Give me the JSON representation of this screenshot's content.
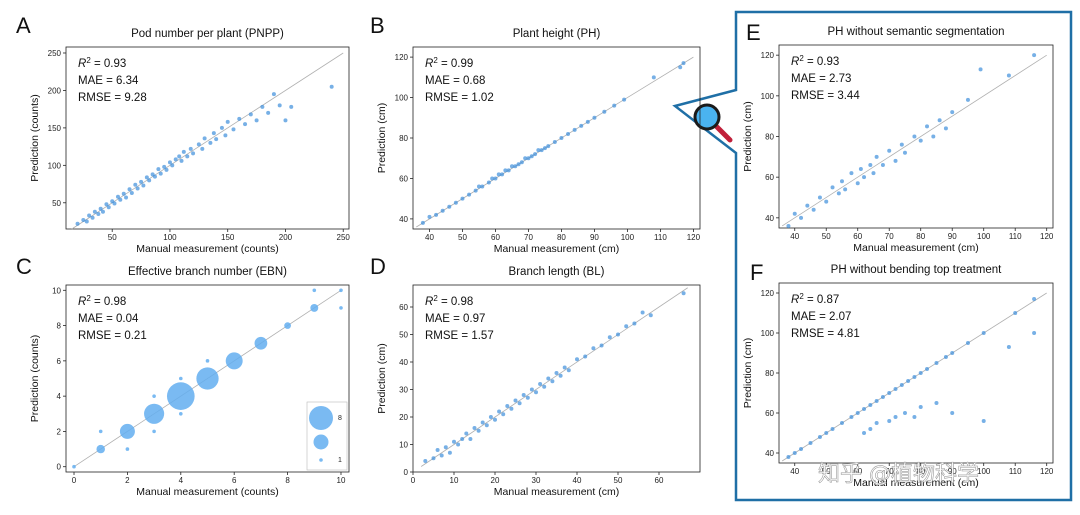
{
  "colors": {
    "point": "#3d8fdc",
    "bubble": "#63aef0",
    "highlight_box": "#1f6fa6",
    "diagonal": "#b0b0b0"
  },
  "zoom_icon": "magnifier-icon",
  "watermark": "知乎 @植物科学",
  "chart_data": [
    {
      "id": "A",
      "type": "scatter",
      "title": "Pod number per plant (PNPP)",
      "xlabel": "Manual measurement (counts)",
      "ylabel": "Prediction (counts)",
      "xlim": [
        10,
        255
      ],
      "ylim": [
        15,
        258
      ],
      "xticks": [
        50,
        100,
        150,
        200,
        250
      ],
      "yticks": [
        50,
        100,
        150,
        200,
        250
      ],
      "stats": {
        "r2": "0.93",
        "mae": "MAE = 6.34",
        "rmse": "RMSE = 9.28"
      },
      "points": [
        [
          20,
          22
        ],
        [
          25,
          27
        ],
        [
          28,
          25
        ],
        [
          30,
          33
        ],
        [
          33,
          30
        ],
        [
          35,
          38
        ],
        [
          38,
          35
        ],
        [
          40,
          42
        ],
        [
          42,
          38
        ],
        [
          45,
          48
        ],
        [
          47,
          44
        ],
        [
          50,
          52
        ],
        [
          52,
          49
        ],
        [
          55,
          58
        ],
        [
          57,
          54
        ],
        [
          60,
          62
        ],
        [
          62,
          57
        ],
        [
          65,
          68
        ],
        [
          67,
          63
        ],
        [
          70,
          74
        ],
        [
          72,
          69
        ],
        [
          75,
          78
        ],
        [
          77,
          73
        ],
        [
          80,
          84
        ],
        [
          82,
          80
        ],
        [
          85,
          88
        ],
        [
          87,
          85
        ],
        [
          90,
          95
        ],
        [
          92,
          89
        ],
        [
          95,
          98
        ],
        [
          97,
          94
        ],
        [
          100,
          104
        ],
        [
          102,
          100
        ],
        [
          105,
          108
        ],
        [
          108,
          112
        ],
        [
          110,
          106
        ],
        [
          112,
          118
        ],
        [
          115,
          112
        ],
        [
          118,
          122
        ],
        [
          120,
          116
        ],
        [
          125,
          128
        ],
        [
          128,
          122
        ],
        [
          130,
          136
        ],
        [
          135,
          130
        ],
        [
          138,
          143
        ],
        [
          140,
          135
        ],
        [
          145,
          150
        ],
        [
          148,
          140
        ],
        [
          150,
          158
        ],
        [
          155,
          148
        ],
        [
          160,
          162
        ],
        [
          165,
          155
        ],
        [
          170,
          168
        ],
        [
          175,
          160
        ],
        [
          180,
          178
        ],
        [
          185,
          170
        ],
        [
          190,
          195
        ],
        [
          195,
          180
        ],
        [
          200,
          160
        ],
        [
          205,
          178
        ],
        [
          240,
          205
        ]
      ],
      "trend": [
        [
          15,
          15
        ],
        [
          250,
          250
        ]
      ]
    },
    {
      "id": "B",
      "type": "scatter",
      "title": "Plant height (PH)",
      "xlabel": "Manual measurement (cm)",
      "ylabel": "Prediction (cm)",
      "xlim": [
        35,
        122
      ],
      "ylim": [
        35,
        125
      ],
      "xticks": [
        40,
        50,
        60,
        70,
        80,
        90,
        100,
        110,
        120
      ],
      "yticks": [
        40,
        60,
        80,
        100,
        120
      ],
      "stats": {
        "r2": "0.99",
        "mae": "MAE = 0.68",
        "rmse": "RMSE = 1.02"
      },
      "points": [
        [
          38,
          38
        ],
        [
          40,
          41
        ],
        [
          42,
          42
        ],
        [
          44,
          44
        ],
        [
          46,
          46
        ],
        [
          48,
          48
        ],
        [
          50,
          50
        ],
        [
          52,
          52
        ],
        [
          54,
          54
        ],
        [
          55,
          56
        ],
        [
          56,
          56
        ],
        [
          58,
          58
        ],
        [
          59,
          60
        ],
        [
          60,
          60
        ],
        [
          61,
          62
        ],
        [
          62,
          62
        ],
        [
          63,
          64
        ],
        [
          64,
          64
        ],
        [
          65,
          66
        ],
        [
          66,
          66
        ],
        [
          67,
          67
        ],
        [
          68,
          68
        ],
        [
          69,
          70
        ],
        [
          70,
          70
        ],
        [
          71,
          71
        ],
        [
          72,
          72
        ],
        [
          73,
          74
        ],
        [
          74,
          74
        ],
        [
          75,
          75
        ],
        [
          76,
          76
        ],
        [
          78,
          78
        ],
        [
          80,
          80
        ],
        [
          82,
          82
        ],
        [
          84,
          84
        ],
        [
          86,
          86
        ],
        [
          88,
          88
        ],
        [
          90,
          90
        ],
        [
          93,
          93
        ],
        [
          96,
          96
        ],
        [
          99,
          99
        ],
        [
          108,
          110
        ],
        [
          116,
          115
        ],
        [
          117,
          117
        ]
      ],
      "trend": [
        [
          36,
          36
        ],
        [
          120,
          120
        ]
      ]
    },
    {
      "id": "C",
      "type": "scatter",
      "title": "Effective branch number (EBN)",
      "xlabel": "Manual measurement (counts)",
      "ylabel": "Prediction (counts)",
      "xlim": [
        -0.3,
        10.3
      ],
      "ylim": [
        -0.3,
        10.3
      ],
      "xticks": [
        0,
        2,
        4,
        6,
        8,
        10
      ],
      "yticks": [
        0,
        2,
        4,
        6,
        8,
        10
      ],
      "stats": {
        "r2": "0.98",
        "mae": "MAE = 0.04",
        "rmse": "RMSE = 0.21"
      },
      "points": [
        [
          0,
          0,
          1
        ],
        [
          1,
          1,
          8
        ],
        [
          2,
          2,
          25
        ],
        [
          3,
          3,
          45
        ],
        [
          4,
          4,
          85
        ],
        [
          5,
          5,
          55
        ],
        [
          6,
          6,
          32
        ],
        [
          7,
          7,
          18
        ],
        [
          8,
          8,
          5
        ],
        [
          9,
          9,
          7
        ],
        [
          10,
          10,
          1
        ],
        [
          9,
          10,
          1
        ],
        [
          10,
          9,
          1
        ],
        [
          2,
          1,
          1
        ],
        [
          3,
          4,
          1
        ],
        [
          4,
          3,
          1
        ],
        [
          5,
          6,
          1
        ],
        [
          4,
          5,
          1
        ],
        [
          3,
          2,
          1
        ],
        [
          1,
          2,
          1
        ]
      ],
      "legend": {
        "sizes": [
          85,
          25,
          1
        ],
        "labels": [
          "8",
          "",
          "1"
        ]
      },
      "trend": [
        [
          0,
          0
        ],
        [
          10,
          10
        ]
      ]
    },
    {
      "id": "D",
      "type": "scatter",
      "title": "Branch length (BL)",
      "xlabel": "Manual measurement (cm)",
      "ylabel": "Prediction (cm)",
      "xlim": [
        0,
        70
      ],
      "ylim": [
        0,
        68
      ],
      "xticks": [
        0,
        10,
        20,
        30,
        40,
        50,
        60
      ],
      "yticks": [
        0,
        10,
        20,
        30,
        40,
        50,
        60
      ],
      "stats": {
        "r2": "0.98",
        "mae": "MAE = 0.97",
        "rmse": "RMSE = 1.57"
      },
      "points": [
        [
          3,
          4
        ],
        [
          5,
          5
        ],
        [
          6,
          8
        ],
        [
          7,
          6
        ],
        [
          8,
          9
        ],
        [
          9,
          7
        ],
        [
          10,
          11
        ],
        [
          11,
          10
        ],
        [
          12,
          12
        ],
        [
          13,
          14
        ],
        [
          14,
          12
        ],
        [
          15,
          16
        ],
        [
          16,
          15
        ],
        [
          17,
          18
        ],
        [
          18,
          17
        ],
        [
          19,
          20
        ],
        [
          20,
          19
        ],
        [
          21,
          22
        ],
        [
          22,
          21
        ],
        [
          23,
          24
        ],
        [
          24,
          23
        ],
        [
          25,
          26
        ],
        [
          26,
          25
        ],
        [
          27,
          28
        ],
        [
          28,
          27
        ],
        [
          29,
          30
        ],
        [
          30,
          29
        ],
        [
          31,
          32
        ],
        [
          32,
          31
        ],
        [
          33,
          34
        ],
        [
          34,
          33
        ],
        [
          35,
          36
        ],
        [
          36,
          35
        ],
        [
          37,
          38
        ],
        [
          38,
          37
        ],
        [
          40,
          41
        ],
        [
          42,
          42
        ],
        [
          44,
          45
        ],
        [
          46,
          46
        ],
        [
          48,
          49
        ],
        [
          50,
          50
        ],
        [
          52,
          53
        ],
        [
          54,
          54
        ],
        [
          56,
          58
        ],
        [
          58,
          57
        ],
        [
          66,
          65
        ]
      ],
      "trend": [
        [
          2,
          2
        ],
        [
          67,
          67
        ]
      ]
    },
    {
      "id": "E",
      "type": "scatter",
      "title": "PH without semantic segmentation",
      "xlabel": "Manual measurement (cm)",
      "ylabel": "Prediction (cm)",
      "xlim": [
        35,
        122
      ],
      "ylim": [
        35,
        125
      ],
      "xticks": [
        40,
        50,
        60,
        70,
        80,
        90,
        100,
        110,
        120
      ],
      "yticks": [
        40,
        60,
        80,
        100,
        120
      ],
      "stats": {
        "r2": "0.93",
        "mae": "MAE = 2.73",
        "rmse": "RMSE = 3.44"
      },
      "points": [
        [
          38,
          36
        ],
        [
          40,
          42
        ],
        [
          42,
          40
        ],
        [
          44,
          46
        ],
        [
          46,
          44
        ],
        [
          48,
          50
        ],
        [
          50,
          48
        ],
        [
          52,
          55
        ],
        [
          54,
          52
        ],
        [
          55,
          58
        ],
        [
          56,
          54
        ],
        [
          58,
          62
        ],
        [
          60,
          57
        ],
        [
          61,
          64
        ],
        [
          62,
          60
        ],
        [
          64,
          66
        ],
        [
          65,
          62
        ],
        [
          66,
          70
        ],
        [
          68,
          66
        ],
        [
          70,
          73
        ],
        [
          72,
          68
        ],
        [
          74,
          76
        ],
        [
          75,
          72
        ],
        [
          78,
          80
        ],
        [
          80,
          78
        ],
        [
          82,
          85
        ],
        [
          84,
          80
        ],
        [
          86,
          88
        ],
        [
          88,
          84
        ],
        [
          90,
          92
        ],
        [
          95,
          98
        ],
        [
          99,
          113
        ],
        [
          108,
          110
        ],
        [
          116,
          120
        ]
      ],
      "trend": [
        [
          36,
          36
        ],
        [
          120,
          120
        ]
      ]
    },
    {
      "id": "F",
      "type": "scatter",
      "title": "PH without bending top treatment",
      "xlabel": "Manual measurement (cm)",
      "ylabel": "Prediction (cm)",
      "xlim": [
        35,
        122
      ],
      "ylim": [
        35,
        125
      ],
      "xticks": [
        40,
        50,
        60,
        70,
        80,
        90,
        100,
        110,
        120
      ],
      "yticks": [
        40,
        60,
        80,
        100,
        120
      ],
      "stats": {
        "r2": "0.87",
        "mae": "MAE = 2.07",
        "rmse": "RMSE = 4.81"
      },
      "points": [
        [
          38,
          38
        ],
        [
          40,
          40
        ],
        [
          42,
          42
        ],
        [
          45,
          45
        ],
        [
          48,
          48
        ],
        [
          50,
          50
        ],
        [
          52,
          52
        ],
        [
          55,
          55
        ],
        [
          58,
          58
        ],
        [
          60,
          60
        ],
        [
          62,
          62
        ],
        [
          64,
          64
        ],
        [
          66,
          66
        ],
        [
          68,
          68
        ],
        [
          70,
          70
        ],
        [
          72,
          72
        ],
        [
          74,
          74
        ],
        [
          76,
          76
        ],
        [
          78,
          78
        ],
        [
          80,
          80
        ],
        [
          82,
          82
        ],
        [
          85,
          85
        ],
        [
          88,
          88
        ],
        [
          90,
          90
        ],
        [
          95,
          95
        ],
        [
          100,
          100
        ],
        [
          110,
          110
        ],
        [
          116,
          117
        ],
        [
          62,
          50
        ],
        [
          64,
          52
        ],
        [
          66,
          55
        ],
        [
          70,
          56
        ],
        [
          72,
          58
        ],
        [
          75,
          60
        ],
        [
          78,
          58
        ],
        [
          80,
          63
        ],
        [
          85,
          65
        ],
        [
          90,
          60
        ],
        [
          100,
          56
        ],
        [
          108,
          93
        ],
        [
          116,
          100
        ]
      ],
      "trend": [
        [
          36,
          36
        ],
        [
          120,
          120
        ]
      ]
    }
  ]
}
